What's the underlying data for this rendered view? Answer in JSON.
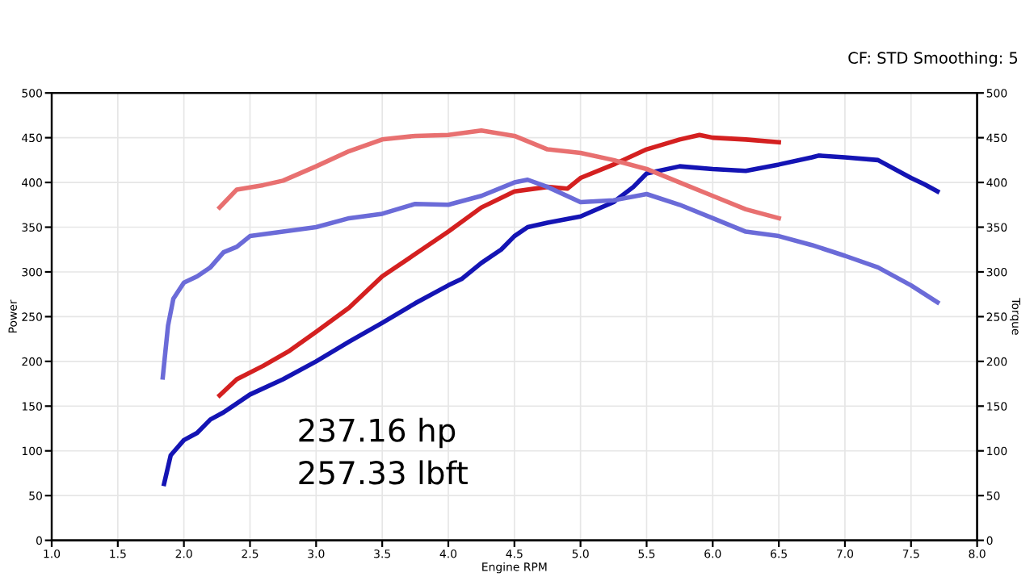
{
  "chart_data": {
    "type": "line",
    "xlabel": "Engine RPM",
    "ylabel": "Power",
    "y2label": "Torque",
    "xlim": [
      1.0,
      8.0
    ],
    "xticks": [
      {
        "value": 1.0,
        "label": "1.0"
      },
      1.5,
      {
        "value": 2.0,
        "label": "2.0"
      },
      2.5,
      {
        "value": 3.0,
        "label": "3.0"
      },
      3.5,
      {
        "value": 4.0,
        "label": "4.0"
      },
      4.5,
      {
        "value": 5.0,
        "label": "5.0"
      },
      5.5,
      {
        "value": 6.0,
        "label": "6.0"
      },
      6.5,
      {
        "value": 7.0,
        "label": "7.0"
      },
      7.5,
      {
        "value": 8.0,
        "label": "8.0"
      }
    ],
    "ylim": [
      0,
      500
    ],
    "yticks": [
      0,
      50,
      100,
      150,
      200,
      250,
      300,
      350,
      400,
      450,
      500
    ],
    "y2lim": [
      0,
      500
    ],
    "y2ticks": [
      0,
      50,
      100,
      150,
      200,
      250,
      300,
      350,
      400,
      450,
      500
    ],
    "grid": true,
    "line_style": "solid",
    "annotations": [
      "CF: STD Smoothing: 5",
      "237.16 hp",
      "257.33 lbft"
    ],
    "series": [
      {
        "color": "#e87070",
        "axis": "y2",
        "x": [
          2.27,
          2.4,
          2.6,
          2.75,
          3.0,
          3.25,
          3.5,
          3.75,
          4.0,
          4.25,
          4.5,
          4.75,
          5.0,
          5.25,
          5.5,
          5.75,
          6.0,
          6.25,
          6.5
        ],
        "values": [
          372,
          392,
          397,
          402,
          418,
          435,
          448,
          452,
          453,
          458,
          452,
          437,
          433,
          425,
          415,
          400,
          385,
          370,
          360
        ]
      },
      {
        "color": "#6b6bd8",
        "axis": "y2",
        "x": [
          1.84,
          1.88,
          1.92,
          2.0,
          2.1,
          2.2,
          2.3,
          2.4,
          2.5,
          2.75,
          3.0,
          3.25,
          3.5,
          3.75,
          4.0,
          4.25,
          4.5,
          4.6,
          4.75,
          5.0,
          5.25,
          5.5,
          5.75,
          6.0,
          6.25,
          6.5,
          6.75,
          7.0,
          7.25,
          7.5,
          7.7
        ],
        "values": [
          182,
          240,
          270,
          288,
          295,
          305,
          322,
          328,
          340,
          345,
          350,
          360,
          365,
          376,
          375,
          385,
          400,
          403,
          395,
          378,
          380,
          387,
          375,
          360,
          345,
          340,
          330,
          318,
          305,
          285,
          266
        ]
      },
      {
        "color": "#d42020",
        "x": [
          2.27,
          2.4,
          2.6,
          2.8,
          3.0,
          3.25,
          3.5,
          3.75,
          4.0,
          4.25,
          4.5,
          4.75,
          4.9,
          5.0,
          5.25,
          5.5,
          5.75,
          5.9,
          6.0,
          6.25,
          6.5
        ],
        "values": [
          162,
          180,
          195,
          212,
          233,
          260,
          295,
          320,
          345,
          372,
          390,
          395,
          393,
          405,
          420,
          437,
          448,
          453,
          450,
          448,
          445
        ]
      },
      {
        "color": "#1414b4",
        "x": [
          1.85,
          1.9,
          2.0,
          2.1,
          2.2,
          2.3,
          2.5,
          2.75,
          3.0,
          3.25,
          3.5,
          3.75,
          4.0,
          4.1,
          4.25,
          4.4,
          4.5,
          4.6,
          4.75,
          5.0,
          5.25,
          5.4,
          5.5,
          5.75,
          6.0,
          6.25,
          6.5,
          6.75,
          6.8,
          7.0,
          7.25,
          7.5,
          7.6,
          7.7
        ],
        "values": [
          63,
          95,
          112,
          120,
          135,
          143,
          163,
          180,
          200,
          222,
          243,
          265,
          285,
          292,
          310,
          325,
          340,
          350,
          355,
          362,
          378,
          395,
          410,
          418,
          415,
          413,
          420,
          428,
          430,
          428,
          425,
          405,
          398,
          390
        ]
      }
    ]
  }
}
